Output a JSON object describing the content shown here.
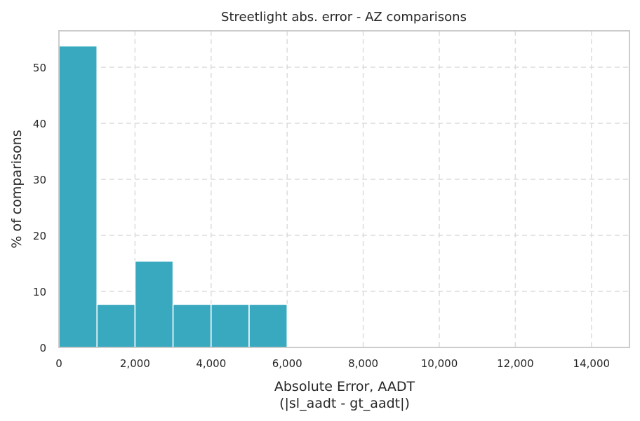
{
  "chart_data": {
    "type": "bar",
    "title": "Streetlight abs. error - AZ comparisons",
    "xlabel": "Absolute Error, AADT",
    "xlabel_line2": "(|sl_aadt - gt_aadt|)",
    "ylabel": "% of comparisons",
    "bin_width": 1000,
    "bins": [
      {
        "x0": 0,
        "x1": 1000,
        "value": 53.8
      },
      {
        "x0": 1000,
        "x1": 2000,
        "value": 7.7
      },
      {
        "x0": 2000,
        "x1": 3000,
        "value": 15.4
      },
      {
        "x0": 3000,
        "x1": 4000,
        "value": 7.7
      },
      {
        "x0": 4000,
        "x1": 5000,
        "value": 7.7
      },
      {
        "x0": 5000,
        "x1": 6000,
        "value": 7.7
      }
    ],
    "xlim": [
      0,
      15000
    ],
    "ylim": [
      0,
      56.5
    ],
    "xticks": [
      0,
      2000,
      4000,
      6000,
      8000,
      10000,
      12000,
      14000
    ],
    "xtick_labels": [
      "0",
      "2,000",
      "4,000",
      "6,000",
      "8,000",
      "10,000",
      "12,000",
      "14,000"
    ],
    "yticks": [
      0,
      10,
      20,
      30,
      40,
      50
    ],
    "ytick_labels": [
      "0",
      "10",
      "20",
      "30",
      "40",
      "50"
    ],
    "grid": true,
    "bar_color": "#38a9bf"
  }
}
